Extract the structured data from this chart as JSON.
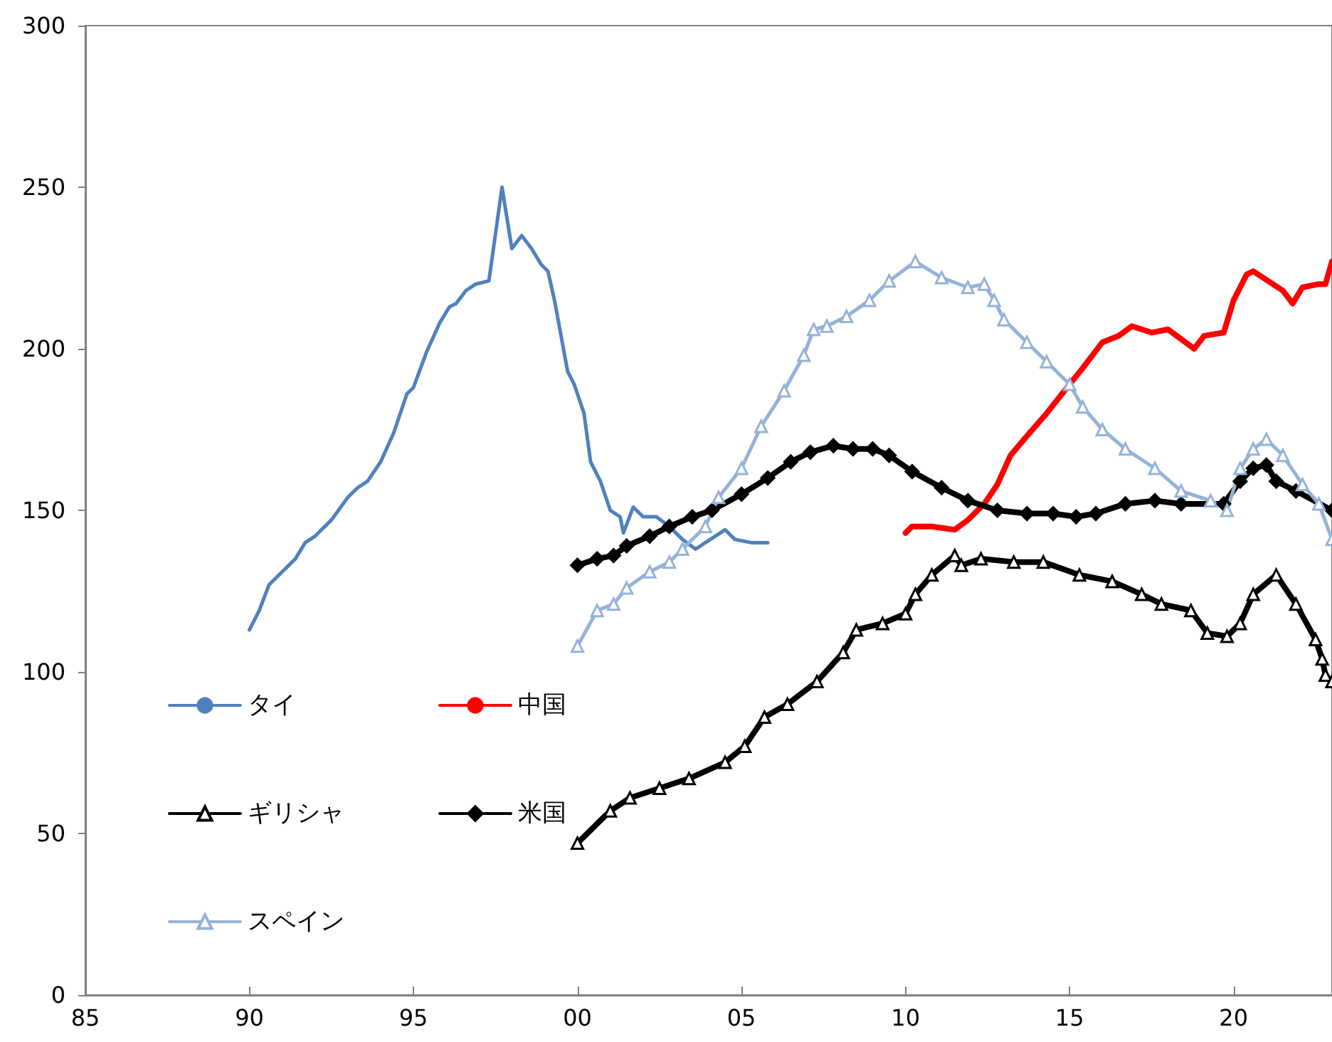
{
  "chart_data": {
    "type": "line",
    "xlim": [
      1985,
      2023
    ],
    "ylim": [
      0,
      300
    ],
    "xticks": [
      {
        "value": 1985,
        "label": "85"
      },
      {
        "value": 1990,
        "label": "90"
      },
      {
        "value": 1995,
        "label": "95"
      },
      {
        "value": 2000,
        "label": "00"
      },
      {
        "value": 2005,
        "label": "05"
      },
      {
        "value": 2010,
        "label": "10"
      },
      {
        "value": 2015,
        "label": "15"
      },
      {
        "value": 2020,
        "label": "20"
      }
    ],
    "yticks": [
      0,
      50,
      100,
      150,
      200,
      250,
      300
    ],
    "grid": false,
    "legend": "bottom left",
    "line_style": "solid",
    "series": [
      {
        "name": "タイ",
        "color": "#4f81bd",
        "marker": "none",
        "x": [
          1990.0,
          1990.3,
          1990.6,
          1991.1,
          1991.4,
          1991.7,
          1992.0,
          1992.5,
          1993.0,
          1993.3,
          1993.6,
          1994.0,
          1994.4,
          1994.8,
          1995.0,
          1995.4,
          1995.8,
          1996.1,
          1996.3,
          1996.6,
          1996.9,
          1997.3,
          1997.7,
          1998.0,
          1998.3,
          1998.6,
          1998.9,
          1999.1,
          1999.3,
          1999.7,
          1999.9,
          2000.2,
          2000.4,
          2000.7,
          2001.0,
          2001.3,
          2001.4,
          2001.7,
          2002.0,
          2002.4,
          2002.8,
          2003.2,
          2003.6,
          2003.9,
          2004.5,
          2004.8,
          2005.3,
          2005.8
        ],
        "values": [
          113,
          119,
          127,
          132,
          135,
          140,
          142,
          147,
          154,
          157,
          159,
          165,
          174,
          186,
          188,
          199,
          208,
          213,
          214,
          218,
          220,
          221,
          250,
          231,
          235,
          231,
          226,
          224,
          215,
          193,
          189,
          180,
          165,
          159,
          150,
          148,
          143,
          151,
          148,
          148,
          145,
          141,
          138,
          140,
          144,
          141,
          140,
          140
        ]
      },
      {
        "name": "中国",
        "color": "#ff0000",
        "marker": "none",
        "x": [
          2010.0,
          2010.2,
          2010.8,
          2011.5,
          2011.9,
          2012.4,
          2012.8,
          2013.2,
          2013.7,
          2014.3,
          2015.0,
          2015.4,
          2016.0,
          2016.5,
          2016.9,
          2017.5,
          2018.0,
          2018.8,
          2019.1,
          2019.7,
          2020.0,
          2020.4,
          2020.6,
          2021.5,
          2021.8,
          2022.1,
          2022.6,
          2022.8,
          2023.0
        ],
        "values": [
          143,
          145,
          145,
          144,
          147,
          152,
          158,
          167,
          173,
          180,
          189,
          194,
          202,
          204,
          207,
          205,
          206,
          200,
          204,
          205,
          215,
          223,
          224,
          218,
          214,
          219,
          220,
          220,
          227
        ]
      },
      {
        "name": "ギリシャ",
        "color": "#000000",
        "marker": "triangle",
        "x": [
          2000.0,
          2001.0,
          2001.6,
          2002.5,
          2003.4,
          2004.5,
          2005.1,
          2005.7,
          2006.4,
          2007.3,
          2008.1,
          2008.5,
          2009.3,
          2010.0,
          2010.3,
          2010.8,
          2011.5,
          2011.7,
          2012.3,
          2013.3,
          2014.2,
          2015.3,
          2016.3,
          2017.2,
          2017.8,
          2018.7,
          2019.2,
          2019.8,
          2020.2,
          2020.6,
          2021.3,
          2021.9,
          2022.5,
          2022.7,
          2022.8,
          2023.0
        ],
        "values": [
          47,
          57,
          61,
          64,
          67,
          72,
          77,
          86,
          90,
          97,
          106,
          113,
          115,
          118,
          124,
          130,
          136,
          133,
          135,
          134,
          134,
          130,
          128,
          124,
          121,
          119,
          112,
          111,
          115,
          124,
          130,
          121,
          110,
          104,
          99,
          97
        ]
      },
      {
        "name": "米国",
        "color": "#000000",
        "marker": "diamond",
        "x": [
          2000.0,
          2000.6,
          2001.1,
          2001.5,
          2002.2,
          2002.8,
          2003.5,
          2004.1,
          2005.0,
          2005.8,
          2006.5,
          2007.1,
          2007.8,
          2008.4,
          2009.0,
          2009.5,
          2010.2,
          2011.1,
          2011.9,
          2012.8,
          2013.7,
          2014.5,
          2015.2,
          2015.8,
          2016.7,
          2017.6,
          2018.4,
          2019.7,
          2020.2,
          2020.6,
          2021.0,
          2021.3,
          2021.9,
          2023.0
        ],
        "values": [
          133,
          135,
          136,
          139,
          142,
          145,
          148,
          150,
          155,
          160,
          165,
          168,
          170,
          169,
          169,
          167,
          162,
          157,
          153,
          150,
          149,
          149,
          148,
          149,
          152,
          153,
          152,
          152,
          159,
          163,
          164,
          159,
          156,
          150
        ]
      },
      {
        "name": "スペイン",
        "color": "#95b3d7",
        "marker": "triangle",
        "x": [
          2000.0,
          2000.6,
          2001.1,
          2001.5,
          2002.2,
          2002.8,
          2003.2,
          2003.9,
          2004.3,
          2005.0,
          2005.6,
          2006.3,
          2006.9,
          2007.2,
          2007.6,
          2008.2,
          2008.9,
          2009.5,
          2010.3,
          2011.1,
          2011.9,
          2012.4,
          2012.7,
          2013.0,
          2013.7,
          2014.3,
          2015.0,
          2015.4,
          2016.0,
          2016.7,
          2017.6,
          2018.4,
          2019.3,
          2019.8,
          2020.2,
          2020.6,
          2021.0,
          2021.5,
          2022.1,
          2022.6,
          2023.0
        ],
        "values": [
          108,
          119,
          121,
          126,
          131,
          134,
          138,
          145,
          154,
          163,
          176,
          187,
          198,
          206,
          207,
          210,
          215,
          221,
          227,
          222,
          219,
          220,
          215,
          209,
          202,
          196,
          189,
          182,
          175,
          169,
          163,
          156,
          153,
          150,
          163,
          169,
          172,
          167,
          158,
          152,
          141
        ]
      }
    ]
  }
}
